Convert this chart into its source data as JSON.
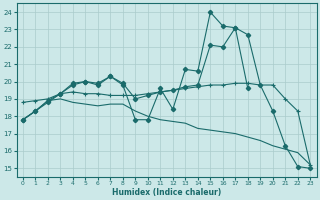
{
  "bg_color": "#cce8e8",
  "grid_color": "#aacccc",
  "line_color": "#1a6b6b",
  "xlabel": "Humidex (Indice chaleur)",
  "xlim": [
    -0.5,
    23.5
  ],
  "ylim": [
    14.5,
    24.5
  ],
  "xticks": [
    0,
    1,
    2,
    3,
    4,
    5,
    6,
    7,
    8,
    9,
    10,
    11,
    12,
    13,
    14,
    15,
    16,
    17,
    18,
    19,
    20,
    21,
    22,
    23
  ],
  "yticks": [
    15,
    16,
    17,
    18,
    19,
    20,
    21,
    22,
    23,
    24
  ],
  "lines": [
    {
      "x": [
        0,
        1,
        2,
        3,
        4,
        5,
        6,
        7,
        8,
        9,
        10,
        11,
        12,
        13,
        14,
        15,
        16,
        17,
        18,
        19,
        20,
        21,
        22,
        23
      ],
      "y": [
        17.8,
        18.3,
        18.8,
        19.3,
        19.8,
        20.0,
        19.8,
        20.3,
        19.8,
        17.8,
        17.8,
        19.6,
        18.4,
        20.7,
        20.6,
        24.0,
        23.2,
        23.1,
        22.7,
        19.8,
        18.3,
        16.3,
        15.1,
        15.0
      ],
      "marker": "D"
    },
    {
      "x": [
        0,
        1,
        2,
        3,
        4,
        5,
        6,
        7,
        8,
        9,
        10,
        11,
        12,
        13,
        14,
        15,
        16,
        17,
        18
      ],
      "y": [
        17.8,
        18.3,
        18.9,
        19.3,
        19.9,
        20.0,
        19.9,
        20.3,
        19.9,
        19.0,
        19.2,
        19.4,
        19.5,
        19.7,
        19.8,
        22.1,
        22.0,
        23.1,
        19.6
      ],
      "marker": "D"
    },
    {
      "x": [
        0,
        1,
        2,
        3,
        4,
        5,
        6,
        7,
        8,
        9,
        10,
        11,
        12,
        13,
        14,
        15,
        16,
        17,
        18,
        19,
        20,
        21,
        22,
        23
      ],
      "y": [
        18.8,
        18.9,
        19.0,
        19.3,
        19.4,
        19.3,
        19.3,
        19.2,
        19.2,
        19.2,
        19.3,
        19.4,
        19.5,
        19.6,
        19.7,
        19.8,
        19.8,
        19.9,
        19.9,
        19.8,
        19.8,
        19.0,
        18.3,
        15.2
      ],
      "marker": "+"
    },
    {
      "x": [
        0,
        1,
        2,
        3,
        4,
        5,
        6,
        7,
        8,
        9,
        10,
        11,
        12,
        13,
        14,
        15,
        16,
        17,
        18,
        19,
        20,
        21,
        22,
        23
      ],
      "y": [
        17.8,
        18.3,
        18.9,
        19.0,
        18.8,
        18.7,
        18.6,
        18.7,
        18.7,
        18.3,
        18.0,
        17.8,
        17.7,
        17.6,
        17.3,
        17.2,
        17.1,
        17.0,
        16.8,
        16.6,
        16.3,
        16.1,
        15.9,
        15.2
      ],
      "marker": "none"
    }
  ]
}
